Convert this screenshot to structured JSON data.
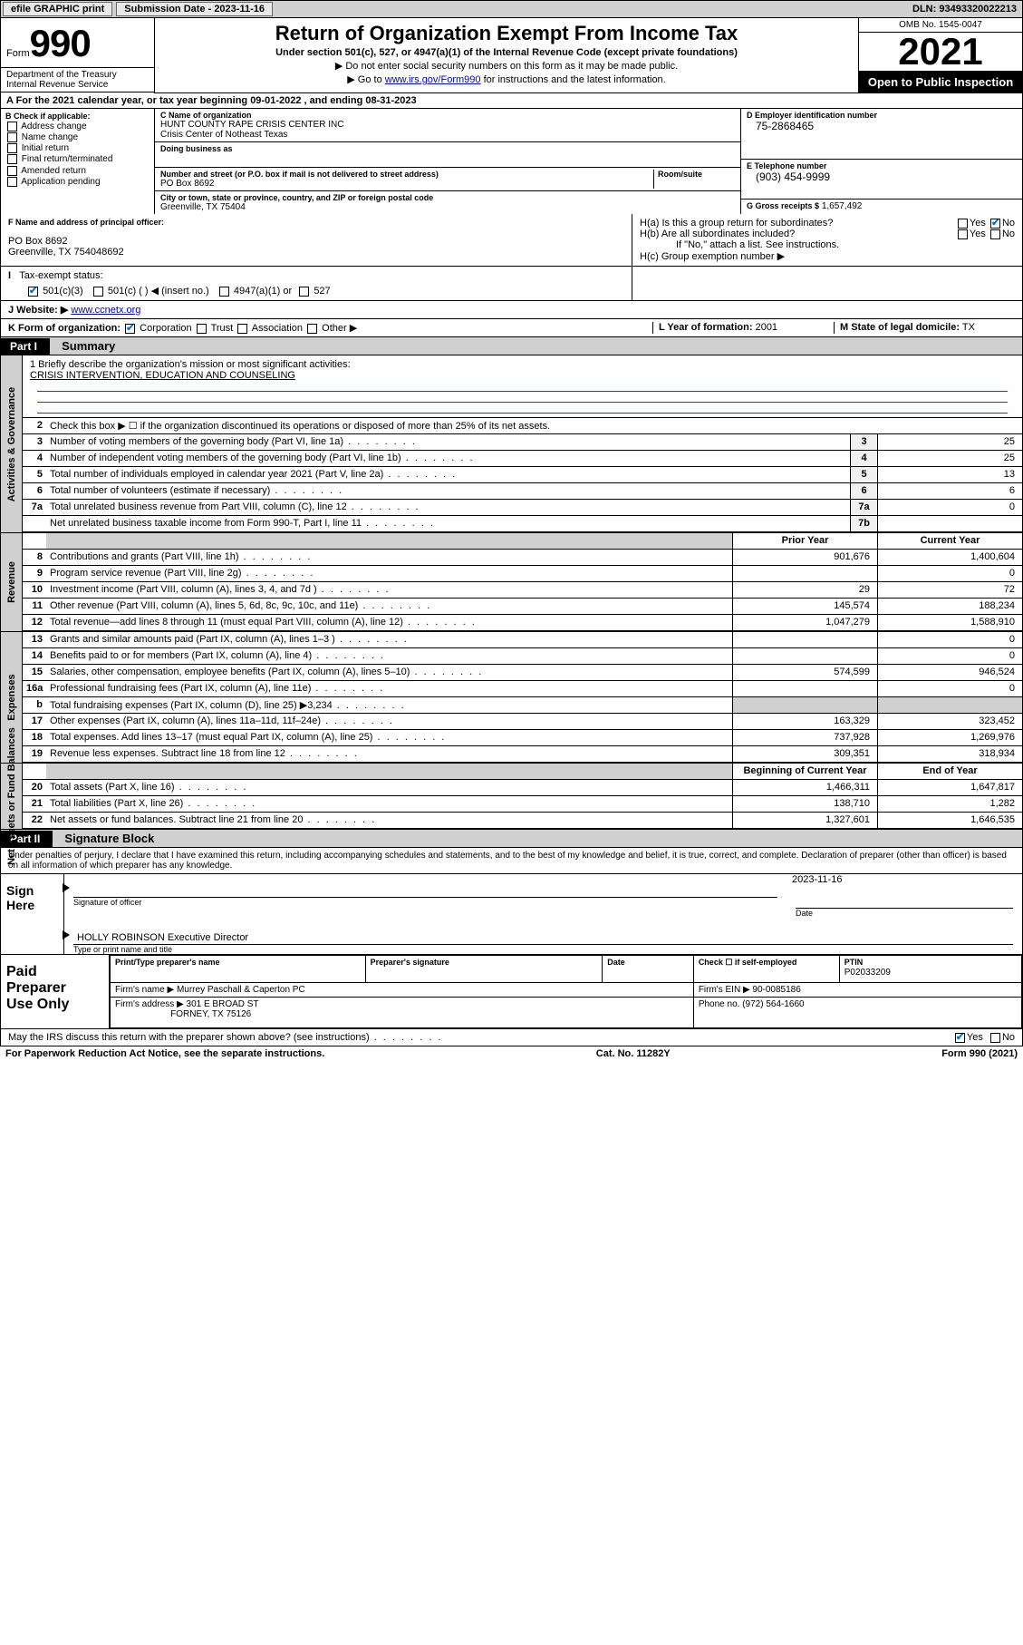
{
  "topbar": {
    "efile": "efile GRAPHIC print",
    "sub_label": "Submission Date - 2023-11-16",
    "dln": "DLN: 93493320022213"
  },
  "form_header": {
    "form_word": "Form",
    "form_num": "990",
    "dept": "Department of the Treasury",
    "irs": "Internal Revenue Service",
    "title": "Return of Organization Exempt From Income Tax",
    "subtitle": "Under section 501(c), 527, or 4947(a)(1) of the Internal Revenue Code (except private foundations)",
    "note1": "▶ Do not enter social security numbers on this form as it may be made public.",
    "note2_pre": "▶ Go to ",
    "note2_link": "www.irs.gov/Form990",
    "note2_post": " for instructions and the latest information.",
    "omb": "OMB No. 1545-0047",
    "year": "2021",
    "open": "Open to Public Inspection"
  },
  "line_a": "A  For the 2021 calendar year, or tax year beginning 09-01-2022   , and ending 08-31-2023",
  "box_b": {
    "header": "B Check if applicable:",
    "items": [
      "Address change",
      "Name change",
      "Initial return",
      "Final return/terminated",
      "Amended return",
      "Application pending"
    ]
  },
  "box_c": {
    "name_hdr": "C Name of organization",
    "name1": "HUNT COUNTY RAPE CRISIS CENTER INC",
    "name2": "Crisis Center of Notheast Texas",
    "dba_hdr": "Doing business as",
    "addr_hdr": "Number and street (or P.O. box if mail is not delivered to street address)",
    "room_hdr": "Room/suite",
    "addr": "PO Box 8692",
    "city_hdr": "City or town, state or province, country, and ZIP or foreign postal code",
    "city": "Greenville, TX  75404"
  },
  "box_d": {
    "hdr": "D Employer identification number",
    "val": "75-2868465"
  },
  "box_e": {
    "hdr": "E Telephone number",
    "val": "(903) 454-9999"
  },
  "box_g": {
    "hdr": "G Gross receipts $",
    "val": "1,657,492"
  },
  "box_f": {
    "hdr": "F  Name and address of principal officer:",
    "l1": "PO Box 8692",
    "l2": "Greenville, TX  754048692"
  },
  "box_h": {
    "a": "H(a)  Is this a group return for subordinates?",
    "b": "H(b)  Are all subordinates included?",
    "b2": "If \"No,\" attach a list. See instructions.",
    "c": "H(c)  Group exemption number ▶"
  },
  "row_i": {
    "label": "Tax-exempt status:",
    "o1": "501(c)(3)",
    "o2": "501(c) (  ) ◀ (insert no.)",
    "o3": "4947(a)(1) or",
    "o4": "527"
  },
  "row_j": {
    "label": "J   Website: ▶",
    "val": "www.ccnetx.org"
  },
  "row_k": {
    "label": "K Form of organization:",
    "o1": "Corporation",
    "o2": "Trust",
    "o3": "Association",
    "o4": "Other ▶"
  },
  "row_l": {
    "label": "L Year of formation:",
    "val": "2001"
  },
  "row_m": {
    "label": "M State of legal domicile:",
    "val": "TX"
  },
  "part1": {
    "tag": "Part I",
    "title": "Summary"
  },
  "mission": {
    "q": "1   Briefly describe the organization's mission or most significant activities:",
    "a": "CRISIS INTERVENTION, EDUCATION AND COUNSELING"
  },
  "governance": {
    "l2": "Check this box ▶ ☐  if the organization discontinued its operations or disposed of more than 25% of its net assets.",
    "rows": [
      {
        "n": "3",
        "d": "Number of voting members of the governing body (Part VI, line 1a)",
        "c": "3",
        "v": "25"
      },
      {
        "n": "4",
        "d": "Number of independent voting members of the governing body (Part VI, line 1b)",
        "c": "4",
        "v": "25"
      },
      {
        "n": "5",
        "d": "Total number of individuals employed in calendar year 2021 (Part V, line 2a)",
        "c": "5",
        "v": "13"
      },
      {
        "n": "6",
        "d": "Total number of volunteers (estimate if necessary)",
        "c": "6",
        "v": "6"
      },
      {
        "n": "7a",
        "d": "Total unrelated business revenue from Part VIII, column (C), line 12",
        "c": "7a",
        "v": "0"
      },
      {
        "n": "",
        "d": "Net unrelated business taxable income from Form 990-T, Part I, line 11",
        "c": "7b",
        "v": ""
      }
    ]
  },
  "two_col_hdr": {
    "prior": "Prior Year",
    "curr": "Current Year"
  },
  "revenue": [
    {
      "n": "8",
      "d": "Contributions and grants (Part VIII, line 1h)",
      "p": "901,676",
      "c": "1,400,604"
    },
    {
      "n": "9",
      "d": "Program service revenue (Part VIII, line 2g)",
      "p": "",
      "c": "0"
    },
    {
      "n": "10",
      "d": "Investment income (Part VIII, column (A), lines 3, 4, and 7d )",
      "p": "29",
      "c": "72"
    },
    {
      "n": "11",
      "d": "Other revenue (Part VIII, column (A), lines 5, 6d, 8c, 9c, 10c, and 11e)",
      "p": "145,574",
      "c": "188,234"
    },
    {
      "n": "12",
      "d": "Total revenue—add lines 8 through 11 (must equal Part VIII, column (A), line 12)",
      "p": "1,047,279",
      "c": "1,588,910"
    }
  ],
  "expenses": [
    {
      "n": "13",
      "d": "Grants and similar amounts paid (Part IX, column (A), lines 1–3 )",
      "p": "",
      "c": "0"
    },
    {
      "n": "14",
      "d": "Benefits paid to or for members (Part IX, column (A), line 4)",
      "p": "",
      "c": "0"
    },
    {
      "n": "15",
      "d": "Salaries, other compensation, employee benefits (Part IX, column (A), lines 5–10)",
      "p": "574,599",
      "c": "946,524"
    },
    {
      "n": "16a",
      "d": "Professional fundraising fees (Part IX, column (A), line 11e)",
      "p": "",
      "c": "0"
    },
    {
      "n": "b",
      "d": "Total fundraising expenses (Part IX, column (D), line 25) ▶3,234",
      "p": "shade",
      "c": "shade"
    },
    {
      "n": "17",
      "d": "Other expenses (Part IX, column (A), lines 11a–11d, 11f–24e)",
      "p": "163,329",
      "c": "323,452"
    },
    {
      "n": "18",
      "d": "Total expenses. Add lines 13–17 (must equal Part IX, column (A), line 25)",
      "p": "737,928",
      "c": "1,269,976"
    },
    {
      "n": "19",
      "d": "Revenue less expenses. Subtract line 18 from line 12",
      "p": "309,351",
      "c": "318,934"
    }
  ],
  "na_hdr": {
    "beg": "Beginning of Current Year",
    "end": "End of Year"
  },
  "netassets": [
    {
      "n": "20",
      "d": "Total assets (Part X, line 16)",
      "p": "1,466,311",
      "c": "1,647,817"
    },
    {
      "n": "21",
      "d": "Total liabilities (Part X, line 26)",
      "p": "138,710",
      "c": "1,282"
    },
    {
      "n": "22",
      "d": "Net assets or fund balances. Subtract line 21 from line 20",
      "p": "1,327,601",
      "c": "1,646,535"
    }
  ],
  "part2": {
    "tag": "Part II",
    "title": "Signature Block"
  },
  "penalties": "Under penalties of perjury, I declare that I have examined this return, including accompanying schedules and statements, and to the best of my knowledge and belief, it is true, correct, and complete. Declaration of preparer (other than officer) is based on all information of which preparer has any knowledge.",
  "sign": {
    "left": "Sign Here",
    "date": "2023-11-16",
    "sig_cap": "Signature of officer",
    "date_cap": "Date",
    "name": "HOLLY ROBINSON  Executive Director",
    "name_cap": "Type or print name and title"
  },
  "preparer": {
    "left1": "Paid",
    "left2": "Preparer",
    "left3": "Use Only",
    "h1": "Print/Type preparer's name",
    "h2": "Preparer's signature",
    "h3": "Date",
    "h4": "Check ☐ if self-employed",
    "h5": "PTIN",
    "ptin": "P02033209",
    "firm_name_l": "Firm's name    ▶",
    "firm_name": "Murrey Paschall & Caperton PC",
    "firm_ein_l": "Firm's EIN ▶",
    "firm_ein": "90-0085186",
    "firm_addr_l": "Firm's address ▶",
    "firm_addr1": "301 E BROAD ST",
    "firm_addr2": "FORNEY, TX  75126",
    "phone_l": "Phone no.",
    "phone": "(972) 564-1660"
  },
  "discuss": "May the IRS discuss this return with the preparer shown above? (see instructions)",
  "footer": {
    "l": "For Paperwork Reduction Act Notice, see the separate instructions.",
    "c": "Cat. No. 11282Y",
    "r": "Form 990 (2021)"
  },
  "vtabs": {
    "gov": "Activities & Governance",
    "rev": "Revenue",
    "exp": "Expenses",
    "na": "Net Assets or Fund Balances"
  }
}
